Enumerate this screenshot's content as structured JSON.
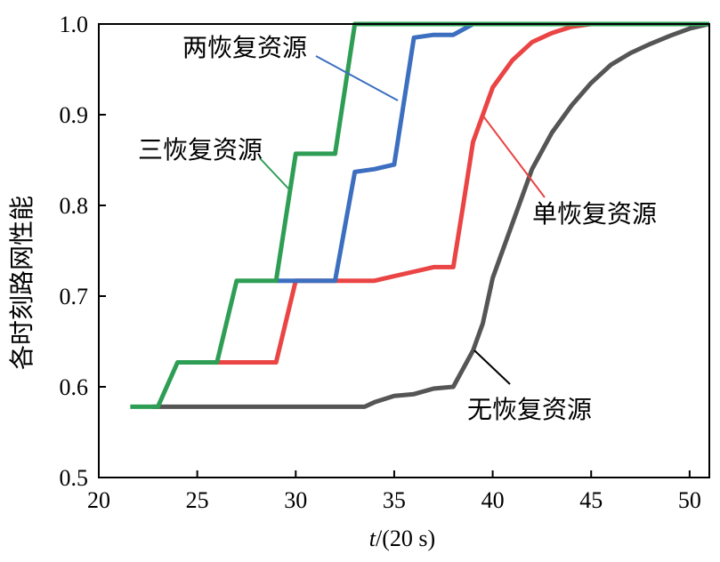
{
  "chart_data": {
    "type": "line",
    "xlabel_italic": "t",
    "xlabel_rest": "/(20 s)",
    "ylabel": "各时刻路网性能",
    "xlim": [
      20,
      51
    ],
    "ylim": [
      0.5,
      1.0
    ],
    "x_ticks": [
      20,
      25,
      30,
      35,
      40,
      45,
      50
    ],
    "y_ticks": [
      0.5,
      0.6,
      0.7,
      0.8,
      0.9,
      1.0
    ],
    "y_tick_labels": [
      "0.5",
      "0.6",
      "0.7",
      "0.8",
      "0.9",
      "1.0"
    ],
    "grid": false,
    "series": [
      {
        "name": "无恢复资源",
        "color": "#555555",
        "points": [
          [
            22.7,
            0.578
          ],
          [
            33.5,
            0.578
          ],
          [
            34,
            0.583
          ],
          [
            35,
            0.59
          ],
          [
            36,
            0.592
          ],
          [
            37,
            0.598
          ],
          [
            38,
            0.6
          ],
          [
            39,
            0.64
          ],
          [
            39.5,
            0.67
          ],
          [
            40,
            0.72
          ],
          [
            41,
            0.78
          ],
          [
            42,
            0.84
          ],
          [
            43,
            0.88
          ],
          [
            44,
            0.91
          ],
          [
            45,
            0.935
          ],
          [
            46,
            0.955
          ],
          [
            47,
            0.968
          ],
          [
            48,
            0.978
          ],
          [
            49,
            0.987
          ],
          [
            50,
            0.995
          ],
          [
            51,
            1.0
          ]
        ]
      },
      {
        "name": "单恢复资源",
        "color": "#ea4444",
        "points": [
          [
            26,
            0.627
          ],
          [
            29,
            0.627
          ],
          [
            30,
            0.717
          ],
          [
            34,
            0.717
          ],
          [
            35,
            0.722
          ],
          [
            36,
            0.727
          ],
          [
            37,
            0.732
          ],
          [
            38,
            0.732
          ],
          [
            38.5,
            0.8
          ],
          [
            39,
            0.87
          ],
          [
            40,
            0.93
          ],
          [
            41,
            0.96
          ],
          [
            42,
            0.98
          ],
          [
            43,
            0.99
          ],
          [
            44,
            0.997
          ],
          [
            45,
            1.0
          ],
          [
            47,
            1.0
          ]
        ]
      },
      {
        "name": "两恢复资源",
        "color": "#3c6fc0",
        "points": [
          [
            29,
            0.717
          ],
          [
            32,
            0.717
          ],
          [
            33,
            0.837
          ],
          [
            34,
            0.84
          ],
          [
            35,
            0.845
          ],
          [
            36,
            0.985
          ],
          [
            37,
            0.988
          ],
          [
            38,
            0.988
          ],
          [
            39,
            1.0
          ],
          [
            51,
            1.0
          ]
        ]
      },
      {
        "name": "三恢复资源",
        "color": "#2e9e55",
        "points": [
          [
            21.6,
            0.578
          ],
          [
            23,
            0.578
          ],
          [
            24,
            0.627
          ],
          [
            26,
            0.627
          ],
          [
            27,
            0.717
          ],
          [
            29,
            0.717
          ],
          [
            30,
            0.857
          ],
          [
            32,
            0.857
          ],
          [
            33,
            1.0
          ],
          [
            51,
            1.0
          ]
        ]
      }
    ]
  }
}
